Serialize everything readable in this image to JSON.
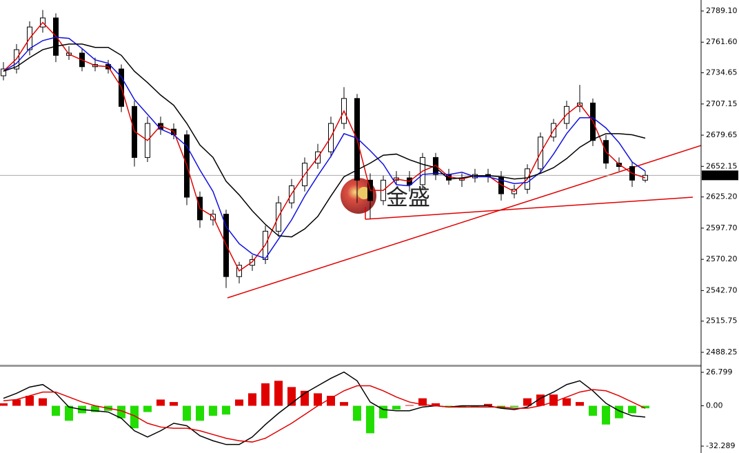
{
  "chart_data": [
    {
      "type": "candlestick",
      "watermark": "金盛",
      "ylim": [
        2477.3,
        2798.8
      ],
      "yticks": [
        {
          "value": 2789.1,
          "label": "2789.10"
        },
        {
          "value": 2761.6,
          "label": "2761.60"
        },
        2734.65,
        2707.15,
        2679.65,
        2652.15,
        {
          "value": 2625.2,
          "label": "2625.20"
        },
        {
          "value": 2597.7,
          "label": "2597.70"
        },
        {
          "value": 2570.2,
          "label": "2570.20"
        },
        {
          "value": 2542.7,
          "label": "2542.70"
        },
        2515.75,
        2488.25
      ],
      "last_price": 2644.24,
      "up_color": "#ffffff",
      "down_color": "#000000",
      "open": [
        2732,
        2738,
        2755,
        2775,
        2783,
        2750,
        2752,
        2740,
        2742,
        2738,
        2705,
        2660,
        2690,
        2685,
        2680,
        2625,
        2605,
        2610,
        2555,
        2565,
        2570,
        2595,
        2620,
        2635,
        2655,
        2665,
        2690,
        2712,
        2640,
        2622,
        2640,
        2642,
        2636,
        2660,
        2645,
        2640,
        2642,
        2645,
        2643,
        2628,
        2632,
        2650,
        2678,
        2690,
        2705,
        2708,
        2675,
        2655,
        2652,
        2640
      ],
      "high": [
        2744,
        2760,
        2780,
        2790,
        2787,
        2758,
        2756,
        2748,
        2746,
        2742,
        2710,
        2696,
        2696,
        2690,
        2684,
        2630,
        2614,
        2614,
        2568,
        2574,
        2600,
        2626,
        2641,
        2660,
        2672,
        2696,
        2722,
        2716,
        2646,
        2644,
        2648,
        2648,
        2664,
        2664,
        2650,
        2646,
        2650,
        2650,
        2648,
        2636,
        2654,
        2682,
        2694,
        2710,
        2724,
        2712,
        2680,
        2660,
        2656,
        2648
      ],
      "low": [
        2728,
        2734,
        2750,
        2770,
        2744,
        2746,
        2736,
        2736,
        2734,
        2700,
        2652,
        2656,
        2680,
        2676,
        2618,
        2598,
        2600,
        2545,
        2549,
        2560,
        2566,
        2590,
        2615,
        2630,
        2650,
        2660,
        2685,
        2620,
        2606,
        2618,
        2636,
        2630,
        2632,
        2640,
        2636,
        2634,
        2638,
        2638,
        2622,
        2624,
        2628,
        2646,
        2674,
        2685,
        2700,
        2670,
        2650,
        2648,
        2634,
        2638
      ],
      "close": [
        2738,
        2755,
        2775,
        2783,
        2750,
        2752,
        2740,
        2742,
        2738,
        2705,
        2660,
        2690,
        2685,
        2680,
        2625,
        2605,
        2610,
        2555,
        2565,
        2570,
        2595,
        2620,
        2635,
        2655,
        2665,
        2690,
        2712,
        2640,
        2622,
        2640,
        2642,
        2636,
        2660,
        2645,
        2640,
        2642,
        2645,
        2643,
        2628,
        2632,
        2650,
        2678,
        2690,
        2705,
        2708,
        2675,
        2655,
        2652,
        2640,
        2644.24
      ],
      "series": [
        {
          "color": "#e00000",
          "values": [
            2736,
            2747,
            2765,
            2779,
            2767,
            2751,
            2746,
            2741,
            2740,
            2722,
            2683,
            2675,
            2688,
            2683,
            2653,
            2615,
            2608,
            2583,
            2560,
            2568,
            2583,
            2608,
            2628,
            2645,
            2660,
            2678,
            2701,
            2676,
            2631,
            2631,
            2641,
            2639,
            2648,
            2653,
            2643,
            2641,
            2644,
            2644,
            2636,
            2630,
            2641,
            2664,
            2684,
            2698,
            2707,
            2692,
            2665,
            2654,
            2646,
            2642
          ]
        },
        {
          "color": "#1010e0",
          "values": [
            2736,
            2743,
            2756,
            2763,
            2766,
            2765,
            2756,
            2746,
            2743,
            2731,
            2711,
            2698,
            2685,
            2680,
            2670,
            2649,
            2630,
            2599,
            2584,
            2575,
            2571,
            2588,
            2605,
            2626,
            2644,
            2661,
            2681,
            2677,
            2666,
            2654,
            2636,
            2635,
            2645,
            2646,
            2645,
            2647,
            2643,
            2643,
            2640,
            2637,
            2638,
            2647,
            2663,
            2681,
            2695,
            2695,
            2686,
            2673,
            2656,
            2648
          ]
        },
        {
          "color": "#000000",
          "values": [
            2736,
            2740,
            2748,
            2755,
            2758,
            2760,
            2760,
            2757,
            2757,
            2750,
            2736,
            2726,
            2715,
            2706,
            2690,
            2671,
            2660,
            2639,
            2627,
            2613,
            2601,
            2591,
            2590,
            2597,
            2608,
            2626,
            2643,
            2649,
            2655,
            2662,
            2663,
            2658,
            2654,
            2651,
            2641,
            2642,
            2644,
            2644,
            2643,
            2641,
            2642,
            2646,
            2651,
            2659,
            2669,
            2676,
            2681,
            2681,
            2680,
            2677
          ]
        }
      ]
    },
    {
      "type": "macd",
      "ylim": [
        -37.8,
        31.2
      ],
      "yticks": [
        26.799,
        {
          "value": 0,
          "label": "0.00"
        },
        -32.289
      ],
      "up_color": "#e00000",
      "down_color": "#22dd00",
      "histogram": [
        2,
        5,
        8,
        6,
        -8,
        -12,
        -6,
        -5,
        -4,
        -10,
        -18,
        -5,
        5,
        3,
        -12,
        -12,
        -8,
        -7,
        5,
        10,
        18,
        20,
        15,
        12,
        10,
        8,
        3,
        -12,
        -22,
        -10,
        -3,
        0.5,
        6,
        2,
        -1,
        -1.5,
        -1,
        1.5,
        -2,
        -1,
        6,
        9,
        9,
        6,
        3,
        -8,
        -15,
        -10,
        -6,
        -2
      ],
      "series": [
        {
          "color": "#000000",
          "values": [
            6,
            10,
            15,
            17,
            10,
            -1,
            -3,
            -4,
            -5,
            -10,
            -20,
            -25,
            -20,
            -14,
            -16,
            -24,
            -28,
            -31,
            -31,
            -25,
            -15,
            -6,
            2,
            10,
            16,
            22,
            27,
            20,
            3,
            -3,
            -4,
            -4,
            -1,
            0,
            -1,
            0,
            0,
            0,
            -2,
            -3,
            -1,
            6,
            11,
            17,
            20,
            12,
            2,
            -4,
            -8,
            -9
          ]
        },
        {
          "color": "#e00000",
          "values": [
            4,
            5,
            8,
            11,
            11,
            7,
            3,
            0,
            -2,
            -4,
            -8,
            -14,
            -17,
            -18,
            -18,
            -20,
            -23,
            -26,
            -28,
            -29,
            -26,
            -20,
            -14,
            -7,
            0,
            6,
            12,
            16,
            16,
            12,
            7,
            3,
            1,
            0,
            -1,
            -1,
            -1,
            -1,
            -1,
            -2,
            -2,
            0,
            3,
            7,
            11,
            13,
            12,
            8,
            3,
            -2
          ]
        }
      ]
    }
  ]
}
